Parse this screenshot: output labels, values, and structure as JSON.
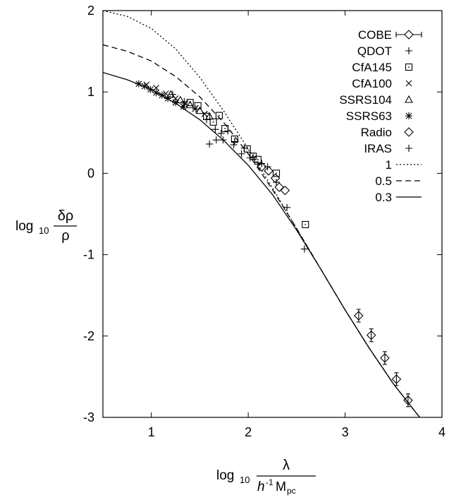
{
  "chart_data": {
    "type": "scatter",
    "title": "",
    "xlabel": {
      "prefix": "log",
      "sub": "10",
      "numerator": "λ",
      "den_h": "h",
      "den_sup": "-1",
      "den_M": "M",
      "den_sub": "pc"
    },
    "ylabel": {
      "prefix": "log",
      "sub": "10",
      "numerator": "δρ",
      "denominator": "ρ"
    },
    "xlim": [
      0.5,
      4
    ],
    "ylim": [
      -3,
      2
    ],
    "xticks": [
      "1",
      "2",
      "3",
      "4"
    ],
    "yticks": [
      "2",
      "1",
      "0",
      "-1",
      "-2",
      "-3"
    ],
    "grid": false,
    "legend_position": "top-right",
    "data_series": [
      {
        "name": "COBE",
        "marker": "diamond-errorbar",
        "x": [
          3.14,
          3.27,
          3.41,
          3.53,
          3.65
        ],
        "y": [
          -1.75,
          -1.99,
          -2.27,
          -2.53,
          -2.79
        ]
      },
      {
        "name": "QDOT",
        "marker": "plus",
        "x": [
          1.22,
          1.34,
          1.46,
          1.57,
          1.66,
          1.74,
          1.85,
          1.96,
          2.05,
          2.14
        ],
        "y": [
          0.97,
          0.88,
          0.79,
          0.66,
          0.54,
          0.41,
          0.35,
          0.31,
          0.2,
          0.12
        ]
      },
      {
        "name": "CfA145",
        "marker": "square-dot",
        "x": [
          1.4,
          1.48,
          1.57,
          1.64,
          1.7,
          1.76,
          1.86,
          1.99,
          2.05,
          2.1,
          2.29,
          2.59
        ],
        "y": [
          0.87,
          0.83,
          0.7,
          0.63,
          0.71,
          0.55,
          0.42,
          0.3,
          0.21,
          0.17,
          0.0,
          -0.63
        ]
      },
      {
        "name": "CfA100",
        "marker": "x",
        "x": [
          0.95,
          1.05,
          1.15,
          1.25,
          1.35,
          1.45,
          1.55
        ],
        "y": [
          1.09,
          1.05,
          0.98,
          0.92,
          0.86,
          0.79,
          0.73
        ]
      },
      {
        "name": "SSRS104",
        "marker": "triangle",
        "x": [
          1.2,
          1.3,
          1.4,
          1.5,
          1.6
        ],
        "y": [
          0.97,
          0.9,
          0.84,
          0.77,
          0.7
        ]
      },
      {
        "name": "SSRS63",
        "marker": "star",
        "x": [
          0.87,
          0.93,
          0.99,
          1.05,
          1.11,
          1.17,
          1.25,
          1.33
        ],
        "y": [
          1.1,
          1.07,
          1.03,
          0.99,
          0.96,
          0.92,
          0.87,
          0.82
        ]
      },
      {
        "name": "Radio",
        "marker": "diamond",
        "x": [
          2.14,
          2.21,
          2.28,
          2.32,
          2.38
        ],
        "y": [
          0.08,
          0.03,
          -0.06,
          -0.17,
          -0.21
        ]
      },
      {
        "name": "IRAS",
        "marker": "plus",
        "x": [
          1.6,
          1.67,
          1.72,
          1.79,
          1.86,
          1.93,
          2.02,
          2.1,
          2.2,
          2.29,
          2.4,
          2.58
        ],
        "y": [
          0.36,
          0.41,
          0.49,
          0.52,
          0.39,
          0.24,
          0.19,
          0.11,
          0.08,
          -0.11,
          -0.42,
          -0.93
        ]
      }
    ],
    "model_curves": [
      {
        "name": "1",
        "style": "dotted",
        "x": [
          0.5,
          0.75,
          1.0,
          1.25,
          1.5,
          1.75,
          2.0,
          2.25,
          2.5,
          2.75,
          3.0,
          3.25,
          3.5,
          3.77
        ],
        "y": [
          2.0,
          1.93,
          1.78,
          1.53,
          1.18,
          0.76,
          0.3,
          -0.18,
          -0.68,
          -1.18,
          -1.68,
          -2.15,
          -2.59,
          -3.0
        ]
      },
      {
        "name": "0.5",
        "style": "dashed",
        "x": [
          0.5,
          0.75,
          1.0,
          1.25,
          1.5,
          1.75,
          2.0,
          2.25,
          2.5,
          2.75,
          3.0,
          3.25,
          3.5,
          3.77
        ],
        "y": [
          1.58,
          1.5,
          1.38,
          1.19,
          0.94,
          0.62,
          0.24,
          -0.2,
          -0.68,
          -1.18,
          -1.68,
          -2.15,
          -2.59,
          -3.0
        ]
      },
      {
        "name": "0.3",
        "style": "solid",
        "x": [
          0.5,
          0.75,
          1.0,
          1.25,
          1.5,
          1.75,
          2.0,
          2.25,
          2.5,
          2.75,
          3.0,
          3.25,
          3.5,
          3.77
        ],
        "y": [
          1.24,
          1.15,
          1.03,
          0.86,
          0.66,
          0.4,
          0.1,
          -0.26,
          -0.7,
          -1.18,
          -1.68,
          -2.15,
          -2.59,
          -3.0
        ]
      }
    ]
  }
}
